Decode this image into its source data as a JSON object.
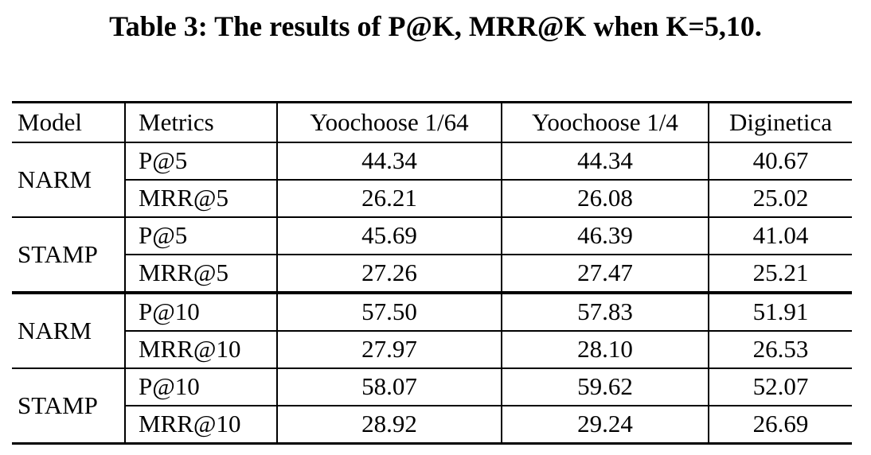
{
  "caption": "Table 3: The results of P@K, MRR@K when K=5,10.",
  "table": {
    "columns": [
      "Model",
      "Metrics",
      "Yoochoose 1/64",
      "Yoochoose 1/4",
      "Diginetica"
    ],
    "groups": [
      {
        "model": "NARM",
        "rows": [
          {
            "metric": "P@5",
            "values": [
              "44.34",
              "44.34",
              "40.67"
            ]
          },
          {
            "metric": "MRR@5",
            "values": [
              "26.21",
              "26.08",
              "25.02"
            ]
          }
        ]
      },
      {
        "model": "STAMP",
        "rows": [
          {
            "metric": "P@5",
            "values": [
              "45.69",
              "46.39",
              "41.04"
            ]
          },
          {
            "metric": "MRR@5",
            "values": [
              "27.26",
              "27.47",
              "25.21"
            ]
          }
        ]
      },
      {
        "model": "NARM",
        "rows": [
          {
            "metric": "P@10",
            "values": [
              "57.50",
              "57.83",
              "51.91"
            ]
          },
          {
            "metric": "MRR@10",
            "values": [
              "27.97",
              "28.10",
              "26.53"
            ]
          }
        ]
      },
      {
        "model": "STAMP",
        "rows": [
          {
            "metric": "P@10",
            "values": [
              "58.07",
              "59.62",
              "52.07"
            ]
          },
          {
            "metric": "MRR@10",
            "values": [
              "28.92",
              "29.24",
              "26.69"
            ]
          }
        ]
      }
    ]
  }
}
